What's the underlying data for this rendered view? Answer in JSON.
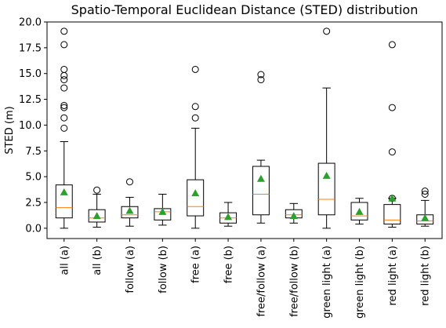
{
  "chart_data": {
    "type": "box",
    "title": "Spatio-Temporal Euclidean Distance (STED) distribution",
    "xlabel": "",
    "ylabel": "STED (m)",
    "ylim": [
      -1.0,
      20.0
    ],
    "yticks": [
      0.0,
      2.5,
      5.0,
      7.5,
      10.0,
      12.5,
      15.0,
      17.5,
      20.0
    ],
    "ytick_labels": [
      "0.0",
      "2.5",
      "5.0",
      "7.5",
      "10.0",
      "12.5",
      "15.0",
      "17.5",
      "20.0"
    ],
    "grid": false,
    "legend": "none",
    "colors": {
      "box": "#000000",
      "median": "#ff7f0e",
      "mean": "#2ca02c",
      "flier": "#000000"
    },
    "categories": [
      "all (a)",
      "all (b)",
      "follow (a)",
      "follow (b)",
      "free (a)",
      "free (b)",
      "free/follow (a)",
      "free/follow (b)",
      "green light (a)",
      "green light (b)",
      "red light (a)",
      "red light (b)"
    ],
    "boxes": [
      {
        "label": "all (a)",
        "whislo": 0.0,
        "q1": 1.0,
        "med": 2.0,
        "q3": 4.2,
        "whishi": 8.4,
        "mean": 3.5,
        "fliers": [
          9.7,
          10.7,
          11.7,
          11.9,
          13.6,
          14.4,
          14.8,
          15.4,
          17.8,
          19.1
        ]
      },
      {
        "label": "all (b)",
        "whislo": 0.1,
        "q1": 0.6,
        "med": 1.0,
        "q3": 1.8,
        "whishi": 3.3,
        "mean": 1.2,
        "fliers": [
          3.7
        ]
      },
      {
        "label": "follow (a)",
        "whislo": 0.2,
        "q1": 1.0,
        "med": 1.3,
        "q3": 2.1,
        "whishi": 3.0,
        "mean": 1.7,
        "fliers": [
          4.5
        ]
      },
      {
        "label": "follow (b)",
        "whislo": 0.3,
        "q1": 0.8,
        "med": 1.6,
        "q3": 1.9,
        "whishi": 3.3,
        "mean": 1.6,
        "fliers": []
      },
      {
        "label": "free (a)",
        "whislo": 0.0,
        "q1": 1.2,
        "med": 2.1,
        "q3": 4.7,
        "whishi": 9.7,
        "mean": 3.4,
        "fliers": [
          10.7,
          11.8,
          15.4
        ]
      },
      {
        "label": "free (b)",
        "whislo": 0.2,
        "q1": 0.5,
        "med": 1.0,
        "q3": 1.5,
        "whishi": 2.5,
        "mean": 1.1,
        "fliers": []
      },
      {
        "label": "free/follow (a)",
        "whislo": 0.5,
        "q1": 1.3,
        "med": 3.3,
        "q3": 6.0,
        "whishi": 6.6,
        "mean": 4.8,
        "fliers": [
          14.4,
          14.9
        ]
      },
      {
        "label": "free/follow (b)",
        "whislo": 0.5,
        "q1": 1.0,
        "med": 1.3,
        "q3": 1.8,
        "whishi": 2.4,
        "mean": 1.2,
        "fliers": []
      },
      {
        "label": "green light (a)",
        "whislo": 0.0,
        "q1": 1.3,
        "med": 2.8,
        "q3": 6.3,
        "whishi": 13.6,
        "mean": 5.1,
        "fliers": [
          19.1
        ]
      },
      {
        "label": "green light (b)",
        "whislo": 0.4,
        "q1": 0.8,
        "med": 1.2,
        "q3": 2.5,
        "whishi": 2.9,
        "mean": 1.6,
        "fliers": []
      },
      {
        "label": "red light (a)",
        "whislo": 0.1,
        "q1": 0.4,
        "med": 0.8,
        "q3": 2.3,
        "whishi": 2.9,
        "mean": 2.9,
        "fliers": [
          2.9,
          7.4,
          11.7,
          17.8
        ]
      },
      {
        "label": "red light (b)",
        "whislo": 0.2,
        "q1": 0.4,
        "med": 0.7,
        "q3": 1.3,
        "whishi": 2.7,
        "mean": 1.0,
        "fliers": [
          3.3,
          3.6
        ]
      }
    ]
  }
}
